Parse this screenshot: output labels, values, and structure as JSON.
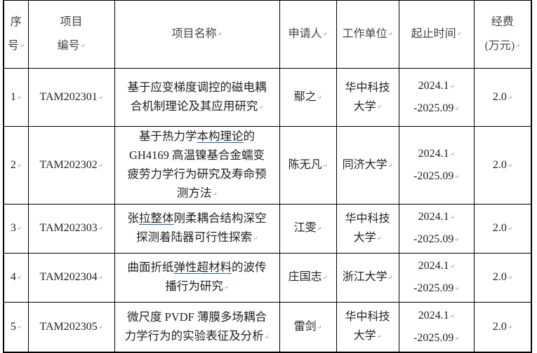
{
  "headers": {
    "index": "序\n号",
    "code": "项目\n编号",
    "name": "项目名称",
    "applicant": "申请人",
    "unit": "工作单位",
    "period": "起止时间",
    "funding": "经费\n(万元)"
  },
  "colors": {
    "text": "#222222",
    "header_text": "#444444",
    "spellcheck_underline": "#2a5bd7"
  },
  "rows": [
    {
      "index": "1",
      "code": "TAM202301",
      "name_segments": [
        {
          "t": "基于应变梯度调控的磁电耦\n合机制理论及其应用研究",
          "u": false
        }
      ],
      "applicant": "鄢之",
      "unit": "华中科技\n大学",
      "start": "2024.1",
      "end": "-2025.09",
      "funding": "2.0"
    },
    {
      "index": "2",
      "code": "TAM202302",
      "name_segments": [
        {
          "t": "基于热力学",
          "u": false
        },
        {
          "t": "本构理论",
          "u": true
        },
        {
          "t": "的\nGH4169 高温镍基合金蠕变\n疲劳力学行为研究及寿命预\n测方法",
          "u": false
        }
      ],
      "applicant": "陈无凡",
      "unit": "同济大学",
      "start": "2024.1",
      "end": "-2025.09",
      "funding": "2.0"
    },
    {
      "index": "3",
      "code": "TAM202303",
      "name_segments": [
        {
          "t": "张",
          "u": false
        },
        {
          "t": "拉整体",
          "u": true
        },
        {
          "t": "刚柔耦合结构深空\n探测着陆器可行性探索",
          "u": false
        }
      ],
      "applicant": "江雯",
      "unit": "华中科技\n大学",
      "start": "2024.1",
      "end": "-2025.09",
      "funding": "2.0"
    },
    {
      "index": "4",
      "code": "TAM202304",
      "name_segments": [
        {
          "t": "曲面折纸",
          "u": false
        },
        {
          "t": "弹性超材料",
          "u": true
        },
        {
          "t": "的波传\n播行为研究",
          "u": false
        }
      ],
      "applicant": "庄国志",
      "unit": "浙江大学",
      "start": "2024.1",
      "end": "-2025.09",
      "funding": "2.0"
    },
    {
      "index": "5",
      "code": "TAM202305",
      "name_segments": [
        {
          "t": "微尺度 PVDF 薄膜多场耦合\n力学行为的实验表征及分析",
          "u": false
        }
      ],
      "applicant": "雷剑",
      "unit": "华中科技\n大学",
      "start": "2024.1",
      "end": "-2025.09",
      "funding": "2.0"
    }
  ]
}
